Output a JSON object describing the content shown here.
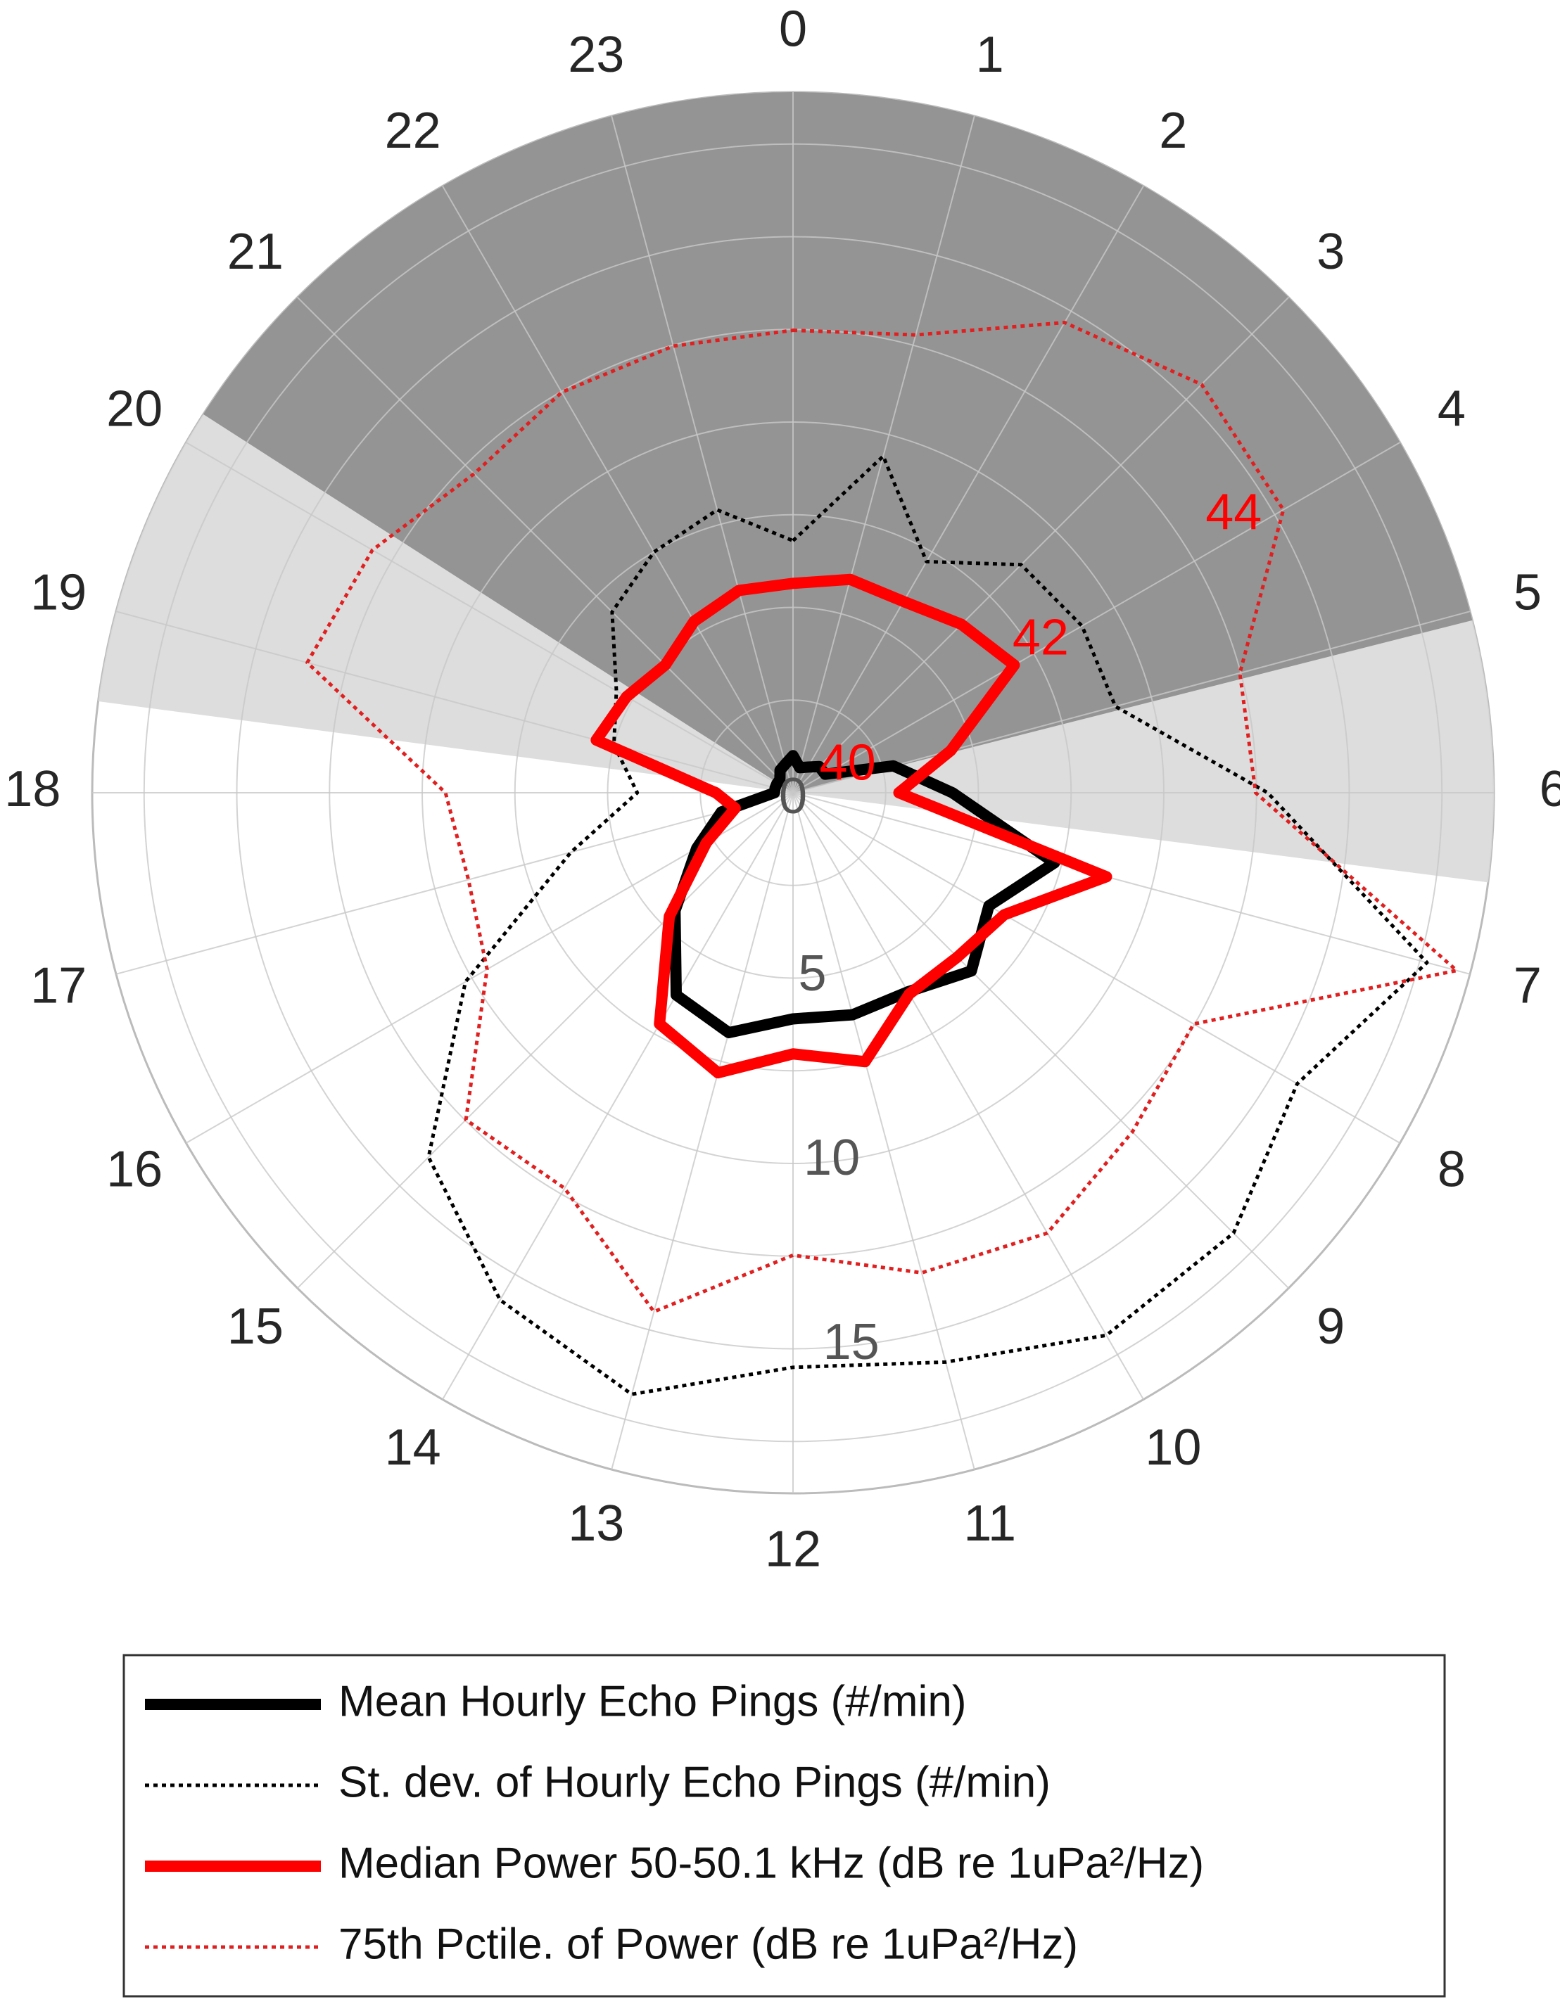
{
  "chart_data": {
    "type": "polar-line",
    "categories": [
      "0",
      "1",
      "2",
      "3",
      "4",
      "5",
      "6",
      "7",
      "8",
      "9",
      "10",
      "11",
      "12",
      "13",
      "14",
      "15",
      "16",
      "17",
      "18",
      "19",
      "20",
      "21",
      "22",
      "23"
    ],
    "rlim": [
      0,
      18.9
    ],
    "rticks": [
      0,
      5,
      10,
      15
    ],
    "rgrid": [
      2.5,
      5,
      7.5,
      10,
      12.5,
      15,
      17.5
    ],
    "r2lim": [
      39.58,
      45.67
    ],
    "r2ticks": [
      40,
      42,
      44
    ],
    "r2_color": "#ff0000",
    "grid": true,
    "shaded_sectors": [
      {
        "from": 18.5,
        "to": 6.49,
        "color": "#d9d9d9"
      },
      {
        "from": 20.18,
        "to": 5.05,
        "color": "#8c8c8c"
      }
    ],
    "series": [
      {
        "name": "Mean Hourly Echo Pings (#/min)",
        "color": "#000000",
        "line_style": "solid",
        "line_width": 16,
        "values": [
          1,
          0.7,
          0.8,
          1,
          1,
          2.8,
          4.3,
          7.3,
          6.1,
          6.8,
          6.2,
          6.2,
          6.1,
          6.7,
          6.3,
          4.5,
          3,
          2,
          0.5,
          0.5,
          0.5,
          0.5,
          0.7,
          0.8
        ]
      },
      {
        "name": "St. dev. of Hourly Echo Pings (#/min)",
        "color": "#000000",
        "line_style": "dotted",
        "line_width": 5,
        "values": [
          6.8,
          9.4,
          7.2,
          8.7,
          9,
          9,
          12.8,
          17.7,
          15.7,
          16.8,
          16.9,
          15.9,
          15.5,
          16.8,
          15.8,
          13.9,
          10.2,
          6.2,
          4.2,
          5,
          5.5,
          6.9,
          7.5,
          7.9
        ]
      },
      {
        "name": "Median Power 50-50.1 kHz (dB re 1uPa²/Hz)",
        "color": "#ff0000",
        "line_style": "solid",
        "line_width": 16,
        "axis": "r2",
        "values": [
          41.4,
          41.5,
          41.5,
          41.65,
          41.8,
          41,
          40.5,
          42.4,
          41.7,
          41.6,
          41.6,
          42,
          41.85,
          42.1,
          41.9,
          41.1,
          40.45,
          40.1,
          40.25,
          41.35,
          41.25,
          41.15,
          41.3,
          41.4
        ]
      },
      {
        "name": "75th Pctile. of Power (dB re 1uPa²/Hz)",
        "color": "#e02020",
        "line_style": "dotted",
        "line_width": 5,
        "axis": "r2",
        "values": [
          43.6,
          43.7,
          44.3,
          44.6,
          44.5,
          43.6,
          43.6,
          45.55,
          43.6,
          43.75,
          44,
          43.9,
          43.6,
          44.25,
          43.55,
          43.6,
          42.65,
          42.5,
          42.6,
          43.95,
          43.8,
          43.5,
          43.6,
          43.6
        ]
      }
    ]
  }
}
